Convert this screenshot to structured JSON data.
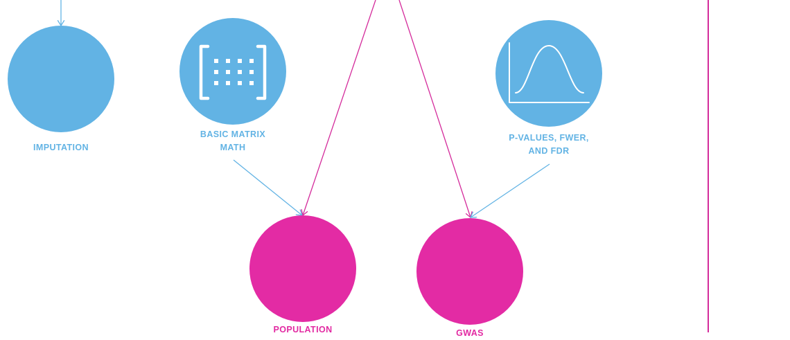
{
  "colors": {
    "blue_node": "#62b3e4",
    "pink_node": "#e32ba4",
    "blue_arrow": "#62b3e4",
    "pink_arrow": "#d42b9b",
    "icon_stroke": "#ffffff"
  },
  "nodes": {
    "imputation": {
      "label_line1": "IMPUTATION",
      "color": "blue",
      "icon": "none"
    },
    "basic_matrix_math": {
      "label_line1": "BASIC MATRIX",
      "label_line2": "MATH",
      "color": "blue",
      "icon": "matrix-icon"
    },
    "p_values": {
      "label_line1": "P-VALUES, FWER,",
      "label_line2": "AND FDR",
      "color": "blue",
      "icon": "normal-distribution-icon"
    },
    "population": {
      "label_line1": "POPULATION",
      "color": "pink",
      "icon": "none"
    },
    "gwas": {
      "label_line1": "GWAS",
      "color": "pink",
      "icon": "none"
    }
  },
  "edges": [
    {
      "from": "offscreen-top",
      "to": "imputation",
      "color": "blue"
    },
    {
      "from": "offscreen-top",
      "to": "population",
      "color": "pink"
    },
    {
      "from": "offscreen-top",
      "to": "gwas",
      "color": "pink"
    },
    {
      "from": "basic_matrix_math",
      "to": "population",
      "color": "blue"
    },
    {
      "from": "p_values",
      "to": "gwas",
      "color": "blue"
    }
  ]
}
